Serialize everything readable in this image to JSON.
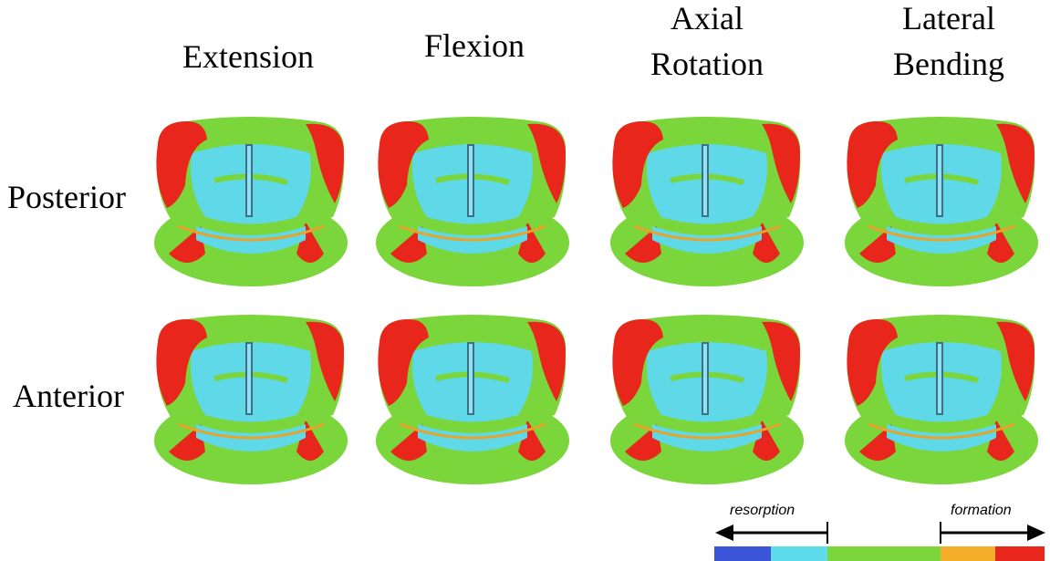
{
  "columns": [
    [
      "Extension"
    ],
    [
      "Flexion"
    ],
    [
      "Axial",
      "Rotation"
    ],
    [
      "Lateral",
      "Bending"
    ]
  ],
  "rows": [
    "Posterior",
    "Anterior"
  ],
  "legend": {
    "left": "resorption",
    "right": "formation"
  }
}
